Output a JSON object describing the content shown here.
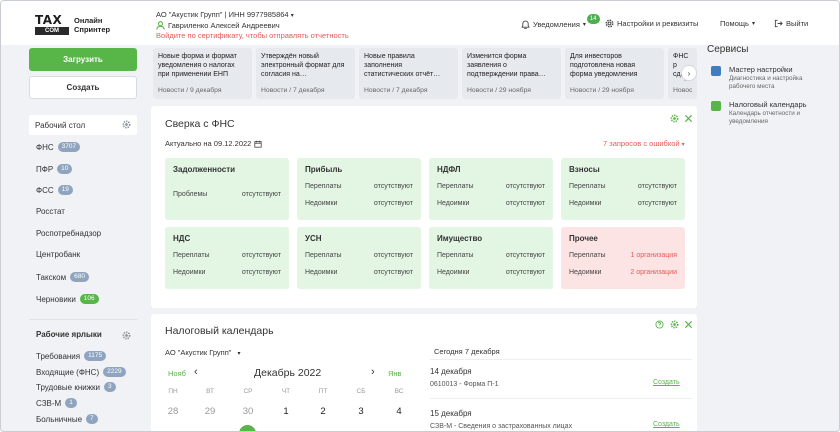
{
  "header": {
    "logo_top": "TAX",
    "logo_bottom": "COM",
    "logo_text_1": "Онлайн",
    "logo_text_2": "Спринтер",
    "org": "АО \"Акустик Групп\" | ИНН 9977985864",
    "user": "Гавриленко Алексей Андреевич",
    "warning": "Войдите по сертификату, чтобы отправлять отчетность",
    "notifications": "Уведомления",
    "notifications_count": "14",
    "settings": "Настройки и реквизиты",
    "help": "Помощь",
    "logout": "Выйти"
  },
  "sidebar": {
    "upload": "Загрузить",
    "create": "Создать",
    "desktop": "Рабочий стол",
    "items": [
      {
        "label": "ФНС",
        "count": "3707"
      },
      {
        "label": "ПФР",
        "count": "10"
      },
      {
        "label": "ФСС",
        "count": "19"
      },
      {
        "label": "Росстат",
        "count": ""
      },
      {
        "label": "Роспотребнадзор",
        "count": ""
      },
      {
        "label": "Центробанк",
        "count": ""
      },
      {
        "label": "Такском",
        "count": "680"
      },
      {
        "label": "Черновики",
        "count": "106"
      }
    ],
    "labels_title": "Рабочие ярлыки",
    "labels": [
      {
        "label": "Требования",
        "count": "1175"
      },
      {
        "label": "Входящие (ФНС)",
        "count": "2229"
      },
      {
        "label": "Трудовые книжки",
        "count": "3"
      },
      {
        "label": "СЗВ-М",
        "count": "1"
      },
      {
        "label": "Больничные",
        "count": "7"
      }
    ]
  },
  "news": [
    {
      "title": "Новые форма и формат уведомления о налогах при применении ЕНП",
      "date": "Новости / 9 декабря"
    },
    {
      "title": "Утверждён новый электронный формат для согласия на…",
      "date": "Новости / 7 декабря"
    },
    {
      "title": "Новые правила заполнения статистических отчёт…",
      "date": "Новости / 7 декабря"
    },
    {
      "title": "Изменится форма заявления о подтверждении права…",
      "date": "Новости / 29 ноября"
    },
    {
      "title": "Для инвесторов подготовлена новая форма уведомления",
      "date": "Новости / 29 ноября"
    },
    {
      "title": "ФНС р сдава отчёт",
      "date": "Новос"
    }
  ],
  "services": {
    "title": "Сервисы",
    "items": [
      {
        "title": "Мастер настройки",
        "desc": "Диагностика и настройка рабочего места"
      },
      {
        "title": "Налоговый календарь",
        "desc": "Календарь отчетности и уведомления"
      }
    ]
  },
  "sverka": {
    "title": "Сверка с ФНС",
    "actual": "Актуально на 09.12.2022",
    "errors": "7 запросов с ошибкой",
    "tiles": [
      {
        "title": "Задолженности",
        "rows": [
          {
            "k": "Проблемы",
            "v": "отсутствуют"
          }
        ]
      },
      {
        "title": "Прибыль",
        "rows": [
          {
            "k": "Переплаты",
            "v": "отсутствуют"
          },
          {
            "k": "Недоимки",
            "v": "отсутствуют"
          }
        ]
      },
      {
        "title": "НДФЛ",
        "rows": [
          {
            "k": "Переплаты",
            "v": "отсутствуют"
          },
          {
            "k": "Недоимки",
            "v": "отсутствуют"
          }
        ]
      },
      {
        "title": "Взносы",
        "rows": [
          {
            "k": "Переплаты",
            "v": "отсутствуют"
          },
          {
            "k": "Недоимки",
            "v": "отсутствуют"
          }
        ]
      },
      {
        "title": "НДС",
        "rows": [
          {
            "k": "Переплаты",
            "v": "отсутствуют"
          },
          {
            "k": "Недоимки",
            "v": "отсутствуют"
          }
        ]
      },
      {
        "title": "УСН",
        "rows": [
          {
            "k": "Переплаты",
            "v": "отсутствуют"
          },
          {
            "k": "Недоимки",
            "v": "отсутствуют"
          }
        ]
      },
      {
        "title": "Имущество",
        "rows": [
          {
            "k": "Переплаты",
            "v": "отсутствуют"
          },
          {
            "k": "Недоимки",
            "v": "отсутствуют"
          }
        ]
      },
      {
        "title": "Прочее",
        "rows": [
          {
            "k": "Переплаты",
            "v": "1 организация"
          },
          {
            "k": "Недоимки",
            "v": "2 организации"
          }
        ]
      }
    ]
  },
  "calendar": {
    "title": "Налоговый календарь",
    "org": "АО \"Акустик Групп\"",
    "prev": "Нояб",
    "month": "Декабрь 2022",
    "next": "Янв",
    "weekdays": [
      "ПН",
      "ВТ",
      "СР",
      "ЧТ",
      "ПТ",
      "СБ",
      "ВС"
    ],
    "days": [
      "28",
      "29",
      "30",
      "1",
      "2",
      "3",
      "4"
    ],
    "today_label": "Сегодня 7 декабря",
    "events": [
      {
        "date": "14 декабря",
        "name": "0610013 - Форма П-1",
        "action": "Создать"
      },
      {
        "date": "15 декабря",
        "name": "СЗВ-М - Сведения о застрахованных лицах",
        "action": "Создать"
      }
    ]
  }
}
